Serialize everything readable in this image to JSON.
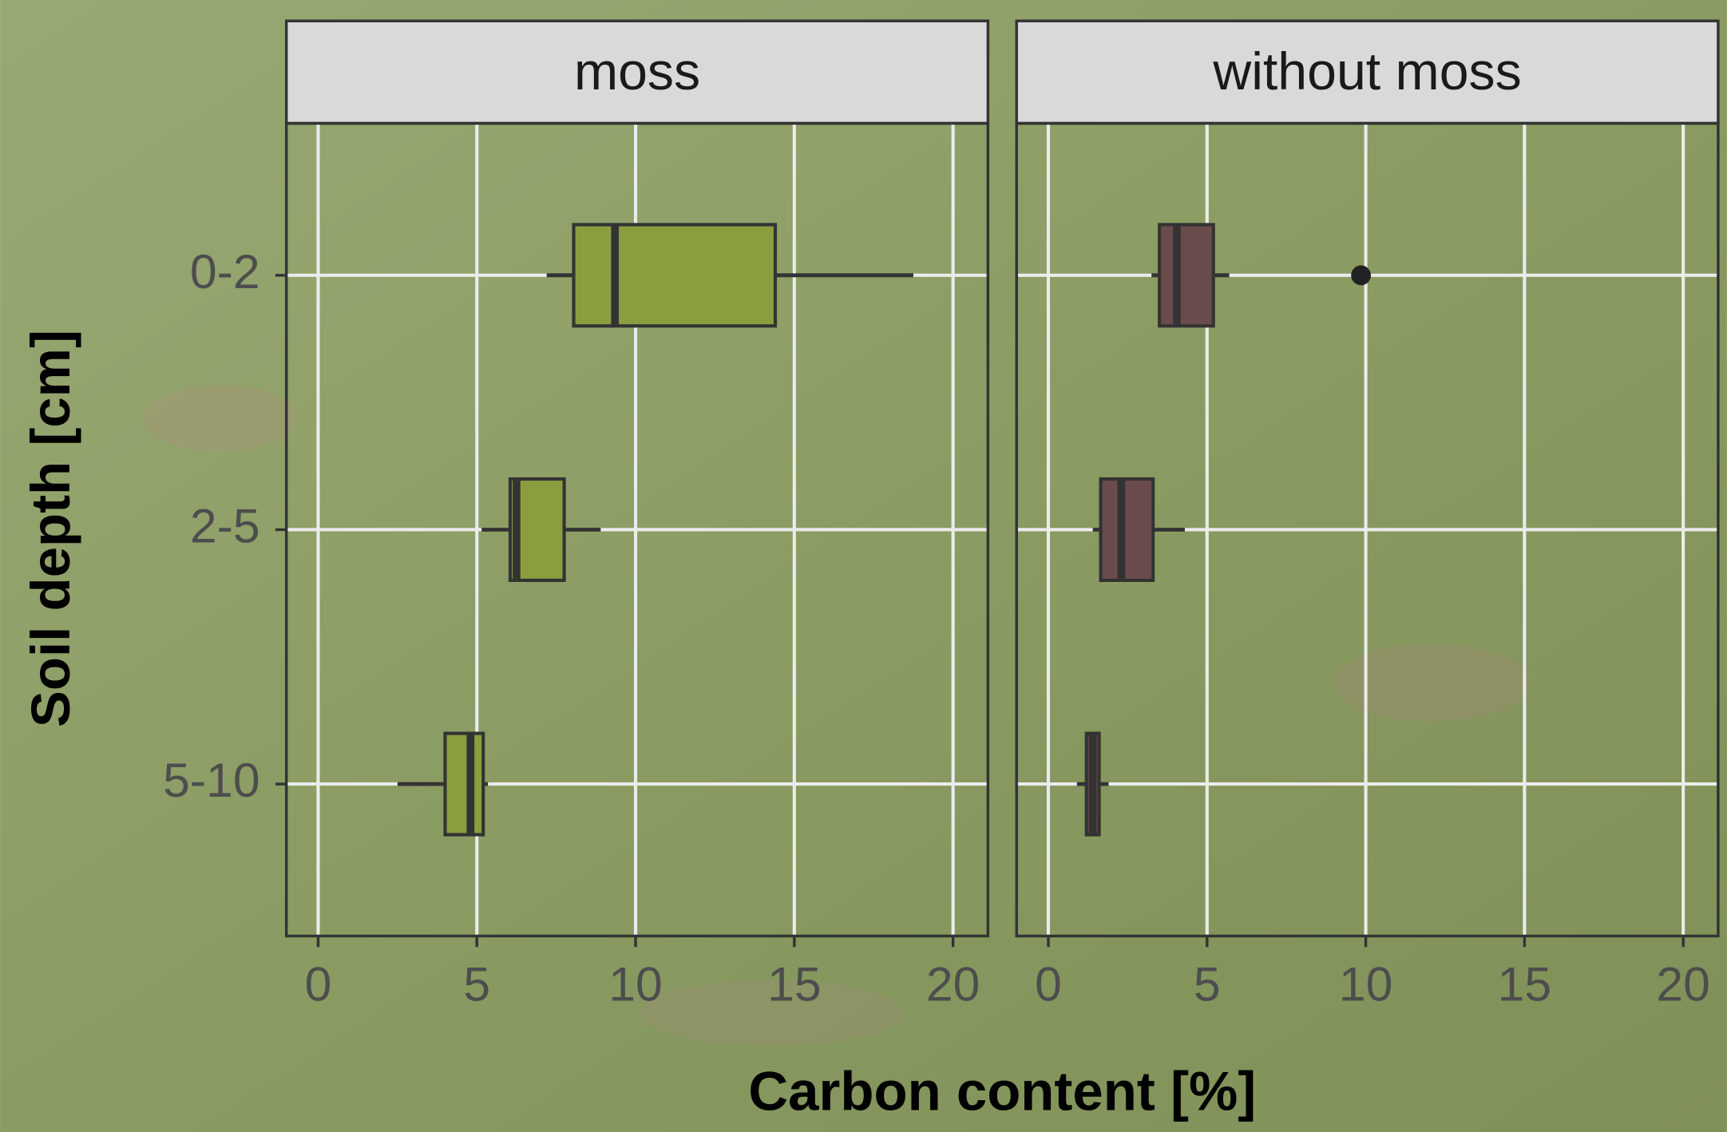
{
  "chart_data": {
    "type": "box",
    "x_label": "Carbon content [%]",
    "y_label": "Soil depth [cm]",
    "categories": [
      "0-2",
      "2-5",
      "5-10"
    ],
    "xlim": [
      -1,
      21.1
    ],
    "xticks": [
      0,
      5,
      10,
      15,
      20
    ],
    "grid": true,
    "panels": [
      {
        "title": "moss",
        "color": "#8a9e40",
        "min": [
          7.2,
          5.15,
          2.5
        ],
        "q1": [
          8.05,
          6.05,
          4.0
        ],
        "median": [
          9.35,
          6.25,
          4.8
        ],
        "q3": [
          14.4,
          7.75,
          5.2
        ],
        "max": [
          18.75,
          8.9,
          5.35
        ],
        "outliers": [
          [],
          [],
          []
        ]
      },
      {
        "title": "without moss",
        "color": "#6b4c4c",
        "min": [
          3.25,
          1.4,
          0.9
        ],
        "q1": [
          3.5,
          1.65,
          1.2
        ],
        "median": [
          4.05,
          2.3,
          1.4
        ],
        "q3": [
          5.2,
          3.3,
          1.6
        ],
        "max": [
          5.7,
          4.3,
          1.9
        ],
        "outliers": [
          [
            9.85
          ],
          [],
          []
        ]
      }
    ]
  }
}
